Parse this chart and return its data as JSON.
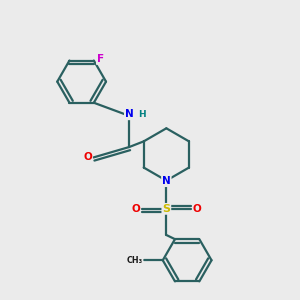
{
  "background_color": "#ebebeb",
  "atom_colors": {
    "C": "#1a1a1a",
    "N": "#0000ee",
    "O": "#ee0000",
    "S": "#ccbb00",
    "F": "#cc00cc",
    "H": "#008080"
  },
  "bond_color": "#2a6060",
  "figsize": [
    3.0,
    3.0
  ],
  "dpi": 100,
  "xlim": [
    0,
    10
  ],
  "ylim": [
    0,
    10
  ]
}
